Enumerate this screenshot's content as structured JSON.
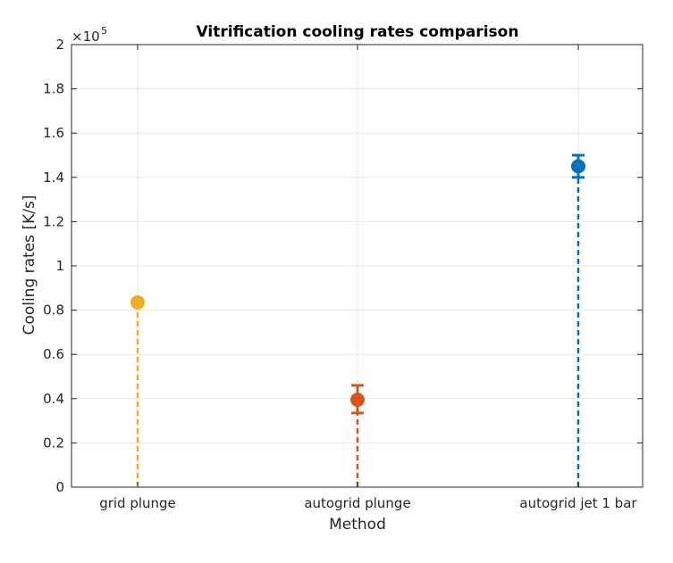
{
  "chart_data": {
    "type": "scatter",
    "title": "Vitrification cooling rates comparison",
    "xlabel": "Method",
    "ylabel": "Cooling rates [K/s]",
    "y_multiplier_label": "×10",
    "y_multiplier_exponent": "5",
    "categories": [
      "grid plunge",
      "autogrid plunge",
      "autogrid jet 1 bar"
    ],
    "ylim": [
      0,
      2
    ],
    "y_ticks": [
      0,
      0.2,
      0.4,
      0.6,
      0.8,
      1,
      1.2,
      1.4,
      1.6,
      1.8,
      2
    ],
    "y_tick_labels": [
      "0",
      "0.2",
      "0.4",
      "0.6",
      "0.8",
      "1",
      "1.2",
      "1.4",
      "1.6",
      "1.8",
      "2"
    ],
    "grid": true,
    "stems": "dashed",
    "points": [
      {
        "category": "grid plunge",
        "value": 0.835,
        "error_low": null,
        "error_high": null,
        "color": "#EDB120"
      },
      {
        "category": "autogrid plunge",
        "value": 0.395,
        "error_low": 0.335,
        "error_high": 0.46,
        "color": "#D95319"
      },
      {
        "category": "autogrid jet 1 bar",
        "value": 1.45,
        "error_low": 1.4,
        "error_high": 1.5,
        "color": "#0072BD"
      }
    ]
  }
}
